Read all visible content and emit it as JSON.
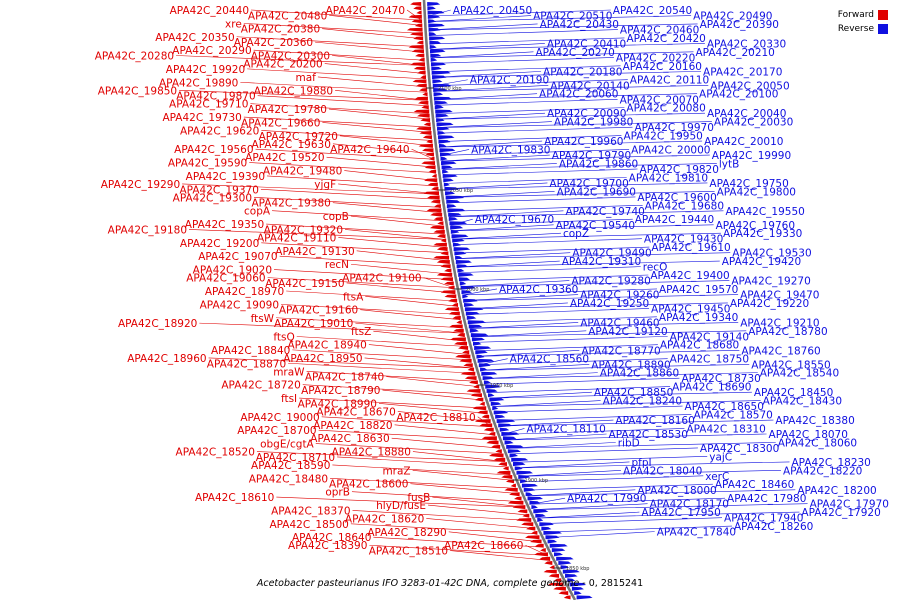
{
  "legend": {
    "forward": "Forward",
    "reverse": "Reverse",
    "forward_color": "#e00000",
    "reverse_color": "#1010e0"
  },
  "caption": {
    "organism": "Acetobacter pasteurianus IFO 3283-01-42C DNA, complete genome",
    "range": "- 0, 2815241"
  },
  "scale": {
    "marks": [
      "2100 kbp",
      "2050 kbp",
      "2000 kbp",
      "1950 kbp",
      "1900 kbp",
      "1850 kbp"
    ]
  },
  "forward_labels": [
    "APA42C_20470",
    "APA42C_20480",
    "APA42C_20440",
    "APA42C_20380",
    "xre",
    "APA42C_20360",
    "APA42C_20350",
    "APA42C_20300",
    "APA42C_20290",
    "APA42C_20280",
    "APA42C_20200",
    "APA42C_19920",
    "maf",
    "APA42C_19890",
    "APA42C_19880",
    "APA42C_19870",
    "APA42C_19850",
    "APA42C_19780",
    "APA42C_19710",
    "APA42C_19660",
    "APA42C_19730",
    "APA42C_19720",
    "APA42C_19620",
    "APA42C_19640",
    "APA42C_19630",
    "APA42C_19560",
    "APA42C_19520",
    "APA42C_19590",
    "APA42C_19480",
    "APA42C_19390",
    "yjgF",
    "APA42C_19370",
    "APA42C_19290",
    "APA42C_19380",
    "APA42C_19300",
    "copB",
    "copA",
    "APA42C_19320",
    "APA42C_19350",
    "APA42C_19180",
    "APA42C_19110",
    "APA42C_19200",
    "APA42C_19130",
    "APA42C_19070",
    "recN",
    "APA42C_19020",
    "APA42C_19100",
    "APA42C_19150",
    "APA42C_19060",
    "ftsA",
    "APA42C_18970",
    "APA42C_19160",
    "APA42C_19090",
    "APA42C_19010",
    "ftsW",
    "APA42C_18920",
    "ftsZ",
    "ftsQ",
    "APA42C_18940",
    "APA42C_18840",
    "APA42C_18950",
    "APA42C_18870",
    "APA42C_18960",
    "APA42C_18740",
    "mraW",
    "APA42C_18790",
    "APA42C_18720",
    "APA42C_18990",
    "ftsI",
    "APA42C_18810",
    "APA42C_18670",
    "APA42C_19000",
    "APA42C_18820",
    "APA42C_18700",
    "APA42C_18630",
    "obgE/cgtA",
    "APA42C_18880",
    "APA42C_18710",
    "APA42C_18520",
    "mraZ",
    "APA42C_18590",
    "APA42C_18600",
    "APA42C_18480",
    "fusB",
    "oprB",
    "APA42C_18610",
    "hlyD/fusE",
    "APA42C_18370",
    "APA42C_18620",
    "APA42C_18500",
    "APA42C_18290",
    "APA42C_18640",
    "APA42C_18660",
    "APA42C_18510",
    "APA42C_18390"
  ],
  "reverse_labels": [
    "APA42C_20450",
    "APA42C_20510",
    "APA42C_20540",
    "APA42C_20490",
    "APA42C_20430",
    "APA42C_20460",
    "APA42C_20390",
    "APA42C_20410",
    "APA42C_20420",
    "APA42C_20330",
    "APA42C_20270",
    "APA42C_20220",
    "APA42C_20210",
    "APA42C_20180",
    "APA42C_20160",
    "APA42C_20170",
    "APA42C_20190",
    "APA42C_20140",
    "APA42C_20110",
    "APA42C_20050",
    "APA42C_20060",
    "APA42C_20070",
    "APA42C_20100",
    "APA42C_20090",
    "APA42C_20080",
    "APA42C_20040",
    "APA42C_19980",
    "APA42C_19970",
    "APA42C_20030",
    "APA42C_19960",
    "APA42C_19950",
    "APA42C_20010",
    "APA42C_19830",
    "APA42C_19790",
    "APA42C_20000",
    "APA42C_19990",
    "APA42C_19860",
    "APA42C_19820",
    "lytB",
    "APA42C_19700",
    "APA42C_19810",
    "APA42C_19750",
    "APA42C_19690",
    "APA42C_19600",
    "APA42C_19800",
    "APA42C_19740",
    "APA42C_19680",
    "APA42C_19550",
    "APA42C_19670",
    "APA42C_19540",
    "APA42C_19440",
    "APA42C_19760",
    "copZ",
    "APA42C_19430",
    "APA42C_19330",
    "APA42C_19490",
    "APA42C_19610",
    "APA42C_19530",
    "APA42C_19310",
    "recO",
    "APA42C_19420",
    "APA42C_19280",
    "APA42C_19400",
    "APA42C_19270",
    "APA42C_19360",
    "APA42C_19260",
    "APA42C_19570",
    "APA42C_19470",
    "APA42C_19250",
    "APA42C_19450",
    "APA42C_19220",
    "APA42C_19460",
    "APA42C_19340",
    "APA42C_19210",
    "APA42C_19120",
    "APA42C_19140",
    "APA42C_18780",
    "APA42C_18770",
    "APA42C_18680",
    "APA42C_18760",
    "APA42C_18560",
    "APA42C_18890",
    "APA42C_18750",
    "APA42C_18550",
    "APA42C_18860",
    "APA42C_18730",
    "APA42C_18540",
    "APA42C_18850",
    "APA42C_18690",
    "APA42C_18450",
    "APA42C_18240",
    "APA42C_18650",
    "APA42C_18430",
    "APA42C_18160",
    "APA42C_18570",
    "APA42C_18380",
    "APA42C_18110",
    "APA42C_18530",
    "APA42C_18310",
    "APA42C_18070",
    "ribD",
    "APA42C_18300",
    "APA42C_18060",
    "pfpI",
    "yajC",
    "APA42C_18230",
    "APA42C_18040",
    "xerC",
    "APA42C_18220",
    "APA42C_18000",
    "APA42C_18460",
    "APA42C_18200",
    "APA42C_17990",
    "APA42C_18170",
    "APA42C_17980",
    "APA42C_17970",
    "APA42C_17950",
    "APA42C_17940",
    "APA42C_17920",
    "APA42C_17840",
    "APA42C_18260"
  ]
}
